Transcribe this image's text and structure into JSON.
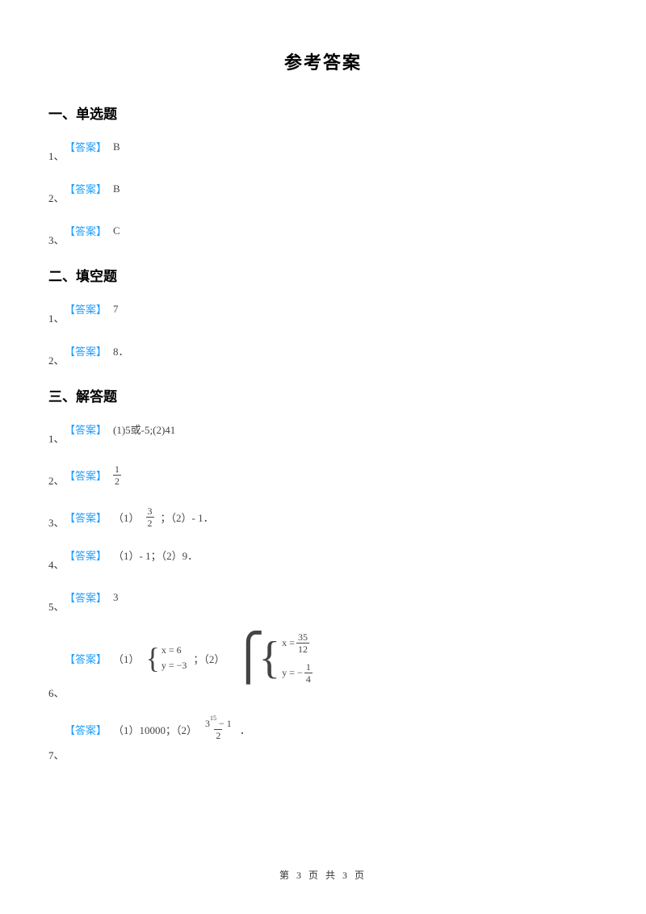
{
  "title": "参考答案",
  "answer_label": "【答案】",
  "sections": {
    "s1": {
      "header": "一、单选题",
      "items": {
        "q1": {
          "num": "1、",
          "value": "B"
        },
        "q2": {
          "num": "2、",
          "value": "B"
        },
        "q3": {
          "num": "3、",
          "value": "C"
        }
      }
    },
    "s2": {
      "header": "二、填空题",
      "items": {
        "q1": {
          "num": "1、",
          "value": "7"
        },
        "q2": {
          "num": "2、",
          "value": "8．"
        }
      }
    },
    "s3": {
      "header": "三、解答题",
      "items": {
        "q1": {
          "num": "1、",
          "value": "(1)5或-5;(2)41"
        },
        "q2": {
          "num": "2、",
          "frac": {
            "n": "1",
            "d": "2"
          }
        },
        "q3": {
          "num": "3、",
          "p1_label": "（1）",
          "frac": {
            "n": "3",
            "d": "2"
          },
          "p2": "；（2）- 1．"
        },
        "q4": {
          "num": "4、",
          "value": "（1）- 1；（2）9．"
        },
        "q5": {
          "num": "5、",
          "value": "3"
        },
        "q6": {
          "num": "6、",
          "p1_label": "（1）",
          "sys1": {
            "x": "x = 6",
            "y": "y = −3"
          },
          "mid": "；（2）",
          "sys2": {
            "x_lhs": "x =",
            "x_frac": {
              "n": "35",
              "d": "12"
            },
            "y_lhs": "y = −",
            "y_frac": {
              "n": "1",
              "d": "4"
            }
          }
        },
        "q7": {
          "num": "7、",
          "p1": "（1）10000；（2）",
          "frac_top": {
            "base": "3",
            "exp": "15",
            "tail": " − 1"
          },
          "frac_bot": "2",
          "p2": "．"
        }
      }
    }
  },
  "footer": "第 3 页 共 3 页",
  "colors": {
    "label": "#1e9fff",
    "text": "#444444",
    "heading": "#000000",
    "bg": "#ffffff"
  },
  "fontsize": {
    "title": 22,
    "section": 17,
    "body": 13,
    "math": 12,
    "footer": 12
  }
}
